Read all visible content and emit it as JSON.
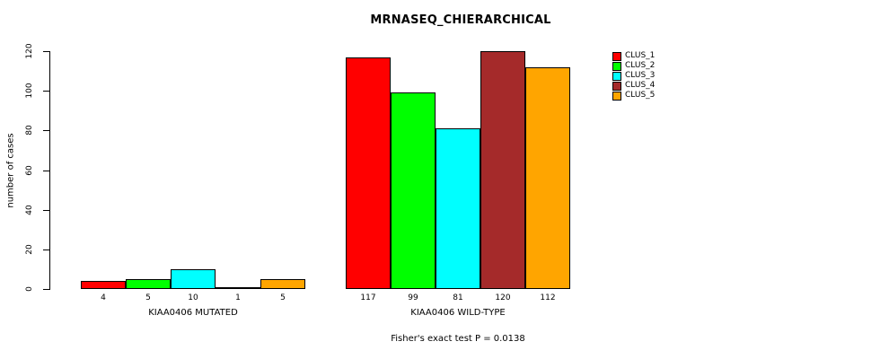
{
  "chart_data": {
    "type": "bar",
    "title": "MRNASEQ_CHIERARCHICAL",
    "ylabel": "number of cases",
    "xlabel": "",
    "ylim": [
      0,
      120
    ],
    "yticks": [
      0,
      20,
      40,
      60,
      80,
      100,
      120
    ],
    "grid": false,
    "legend_position": "top-right",
    "series_names": [
      "CLUS_1",
      "CLUS_2",
      "CLUS_3",
      "CLUS_4",
      "CLUS_5"
    ],
    "colors": [
      "#ff0000",
      "#00ff00",
      "#00ffff",
      "#a52a2a",
      "#ffa500"
    ],
    "groups": [
      {
        "key": "mutated",
        "label": "KIAA0406 MUTATED",
        "values": [
          4,
          5,
          10,
          1,
          5
        ]
      },
      {
        "key": "wild-type",
        "label": "KIAA0406 WILD-TYPE",
        "values": [
          117,
          99,
          81,
          120,
          112
        ]
      }
    ],
    "annotation": "Fisher's exact test P = 0.0138"
  }
}
